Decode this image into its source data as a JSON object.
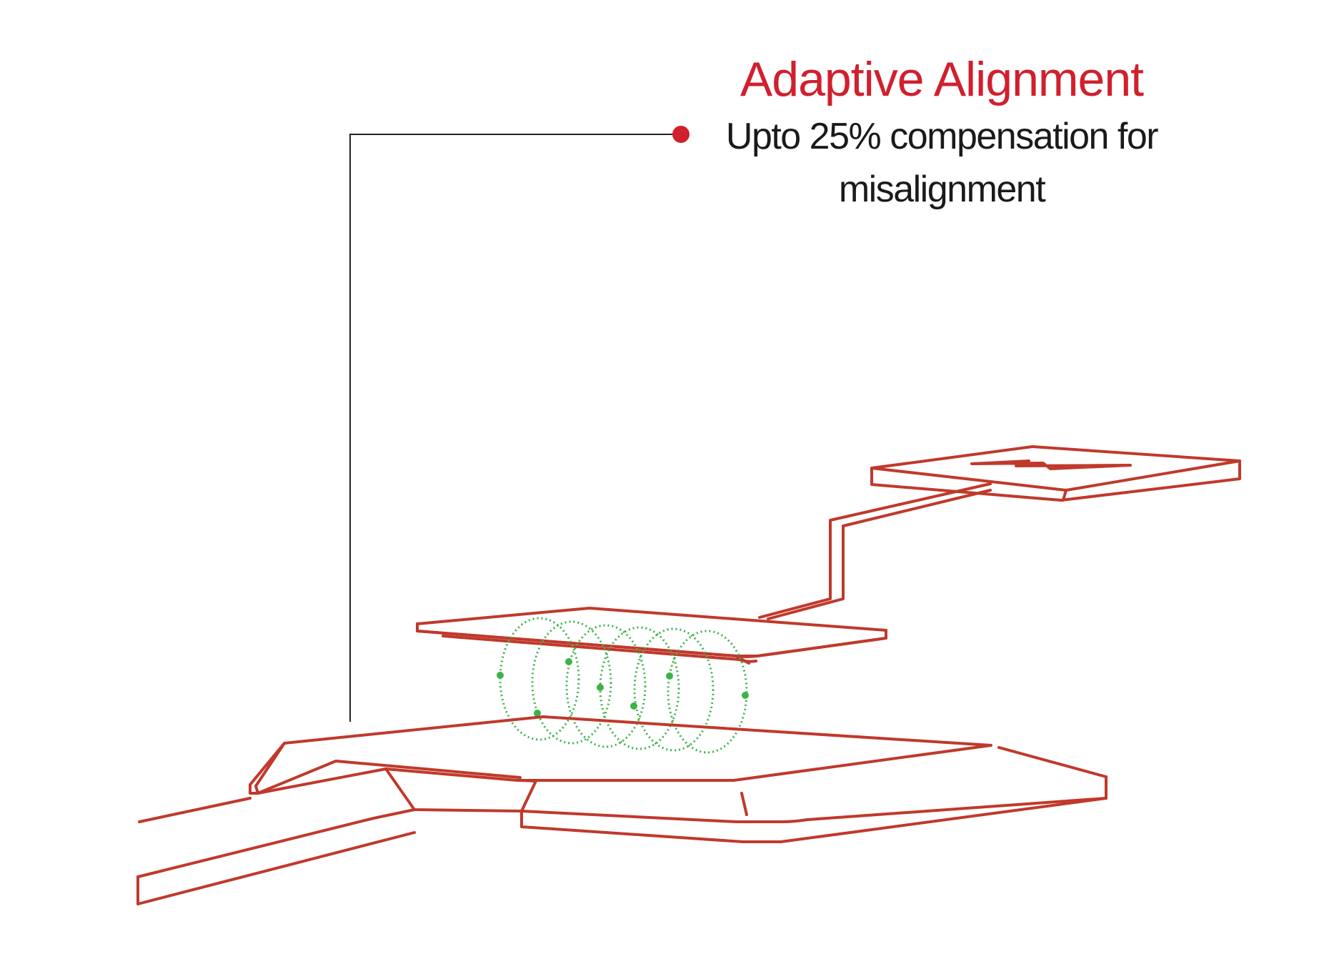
{
  "annotation": {
    "title": "Adaptive Alignment",
    "caption_line1": "Upto 25% compensation for",
    "caption_line2": "misalignment"
  },
  "colors": {
    "accent": "#d0202e",
    "outline": "#c0392b",
    "field": "#3cb34a",
    "leader": "#222222",
    "text": "#1a1a1a",
    "background": "#ffffff"
  }
}
